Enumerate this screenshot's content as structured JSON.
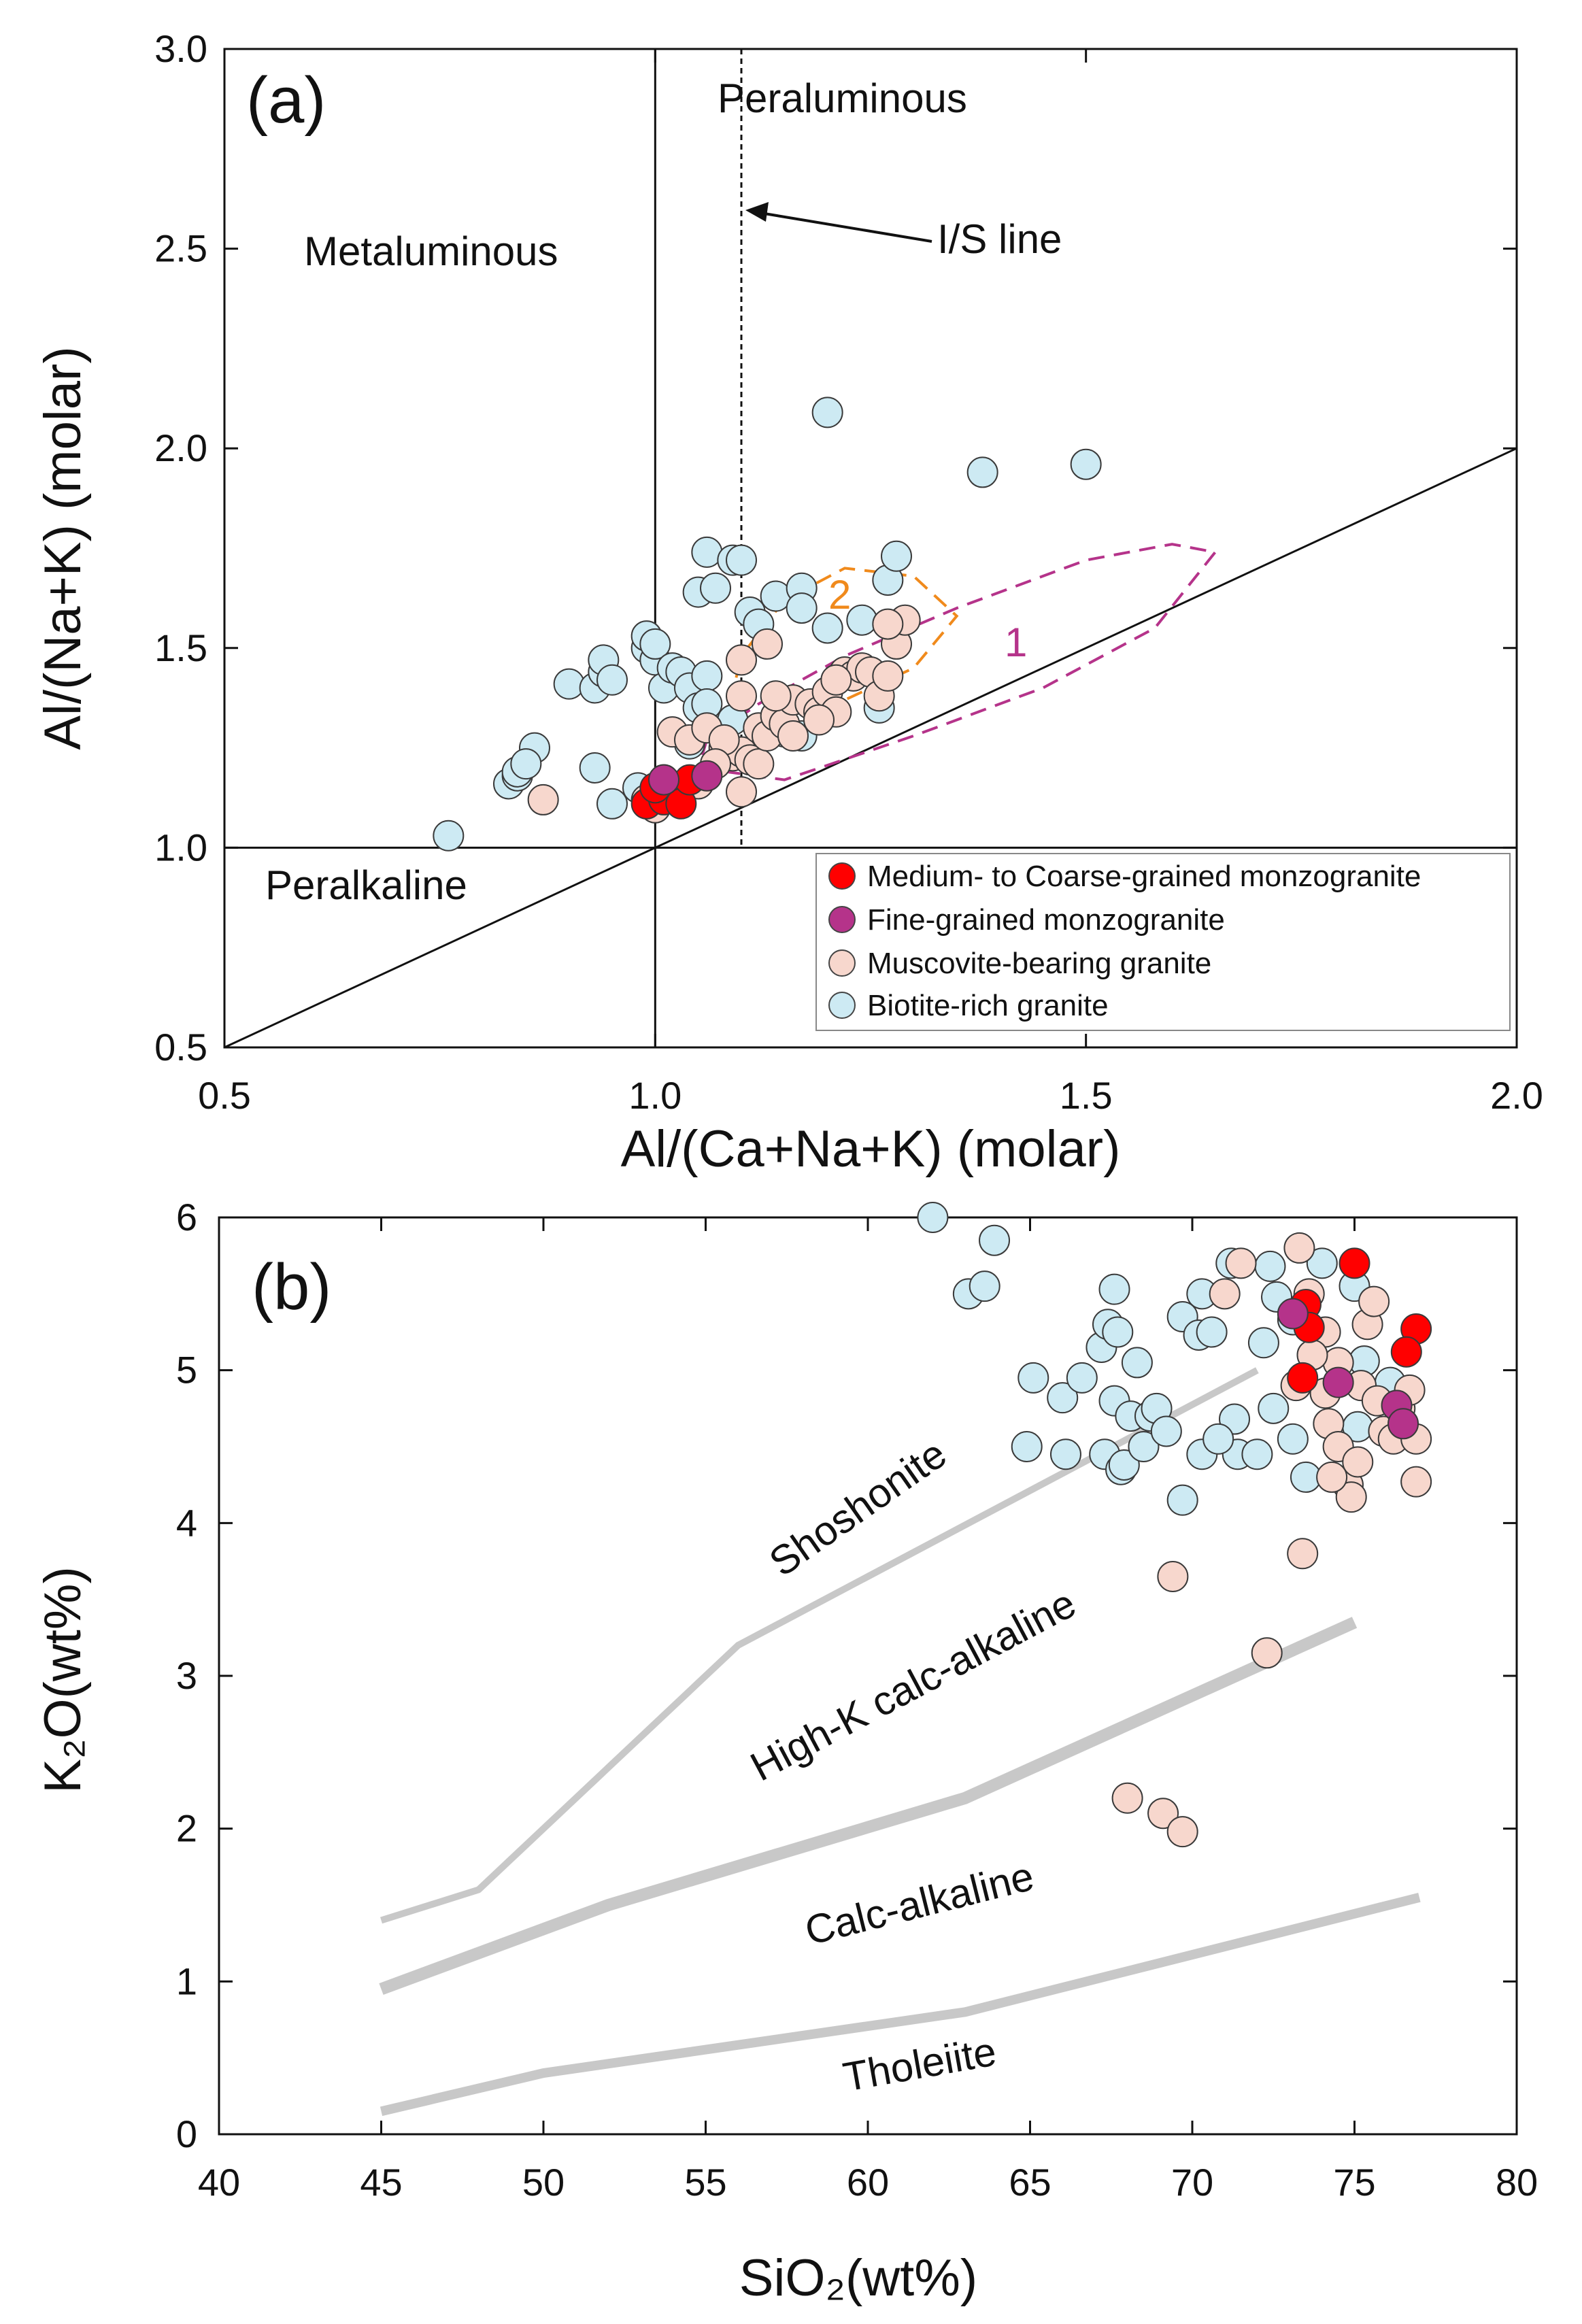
{
  "colors": {
    "monzo_coarse": "#ff0000",
    "monzo_fine": "#b5338a",
    "muscovite": "#f7d7cd",
    "biotite": "#cdeaf3",
    "field1": "#b5338a",
    "field2": "#f08a1c",
    "trend": "#c8c8c8"
  },
  "chart_data": [
    {
      "type": "scatter",
      "panel_label": "(a)",
      "xlabel": "Al/(Ca+Na+K) (molar)",
      "ylabel": "Al/(Na+K) (molar)",
      "xlim": [
        0.5,
        2.0
      ],
      "ylim": [
        0.5,
        3.0
      ],
      "xticks": [
        "0.5",
        "1.0",
        "1.5",
        "2.0"
      ],
      "yticks": [
        "0.5",
        "1.0",
        "1.5",
        "2.0",
        "2.5",
        "3.0"
      ],
      "region_labels": {
        "metaluminous": "Metaluminous",
        "peraluminous": "Peraluminous",
        "peralkaline": "Peralkaline"
      },
      "is_line_label": "I/S line",
      "is_line_x": 1.1,
      "field_labels": {
        "field1": "1",
        "field2": "2"
      },
      "legend": {
        "monzo_coarse": "Medium- to Coarse-grained monzogranite",
        "monzo_fine": "Fine-grained monzogranite",
        "muscovite": "Muscovite-bearing granite",
        "biotite": "Biotite-rich granite"
      },
      "series": [
        {
          "name": "Biotite-rich granite",
          "key": "biotite",
          "points": [
            [
              0.76,
              1.03
            ],
            [
              0.83,
              1.16
            ],
            [
              0.84,
              1.18
            ],
            [
              0.86,
              1.25
            ],
            [
              0.84,
              1.19
            ],
            [
              0.85,
              1.21
            ],
            [
              0.9,
              1.41
            ],
            [
              0.93,
              1.4
            ],
            [
              0.94,
              1.44
            ],
            [
              0.94,
              1.47
            ],
            [
              0.95,
              1.42
            ],
            [
              0.99,
              1.5
            ],
            [
              0.99,
              1.53
            ],
            [
              1.0,
              1.47
            ],
            [
              1.0,
              1.51
            ],
            [
              1.01,
              1.4
            ],
            [
              1.02,
              1.45
            ],
            [
              1.03,
              1.44
            ],
            [
              1.04,
              1.4
            ],
            [
              1.05,
              1.35
            ],
            [
              1.06,
              1.43
            ],
            [
              1.05,
              1.64
            ],
            [
              1.07,
              1.65
            ],
            [
              1.06,
              1.74
            ],
            [
              1.09,
              1.72
            ],
            [
              1.1,
              1.72
            ],
            [
              1.11,
              1.59
            ],
            [
              1.12,
              1.56
            ],
            [
              1.14,
              1.63
            ],
            [
              1.17,
              1.65
            ],
            [
              1.17,
              1.6
            ],
            [
              1.2,
              1.55
            ],
            [
              1.24,
              1.57
            ],
            [
              1.27,
              1.67
            ],
            [
              1.28,
              1.73
            ],
            [
              1.2,
              2.09
            ],
            [
              1.38,
              1.94
            ],
            [
              1.5,
              1.96
            ],
            [
              1.17,
              1.28
            ],
            [
              1.15,
              1.29
            ],
            [
              0.93,
              1.2
            ],
            [
              0.95,
              1.11
            ],
            [
              0.98,
              1.15
            ],
            [
              1.01,
              1.17
            ],
            [
              1.04,
              1.26
            ],
            [
              1.09,
              1.32
            ],
            [
              1.06,
              1.36
            ],
            [
              1.26,
              1.35
            ]
          ]
        },
        {
          "name": "Muscovite-bearing granite",
          "key": "muscovite",
          "points": [
            [
              0.87,
              1.12
            ],
            [
              0.99,
              1.12
            ],
            [
              1.0,
              1.1
            ],
            [
              1.02,
              1.29
            ],
            [
              1.04,
              1.27
            ],
            [
              1.06,
              1.3
            ],
            [
              1.08,
              1.25
            ],
            [
              1.09,
              1.23
            ],
            [
              1.1,
              1.14
            ],
            [
              1.1,
              1.24
            ],
            [
              1.11,
              1.22
            ],
            [
              1.12,
              1.21
            ],
            [
              1.12,
              1.3
            ],
            [
              1.13,
              1.28
            ],
            [
              1.14,
              1.33
            ],
            [
              1.15,
              1.31
            ],
            [
              1.16,
              1.37
            ],
            [
              1.18,
              1.36
            ],
            [
              1.19,
              1.34
            ],
            [
              1.2,
              1.39
            ],
            [
              1.21,
              1.34
            ],
            [
              1.22,
              1.44
            ],
            [
              1.23,
              1.43
            ],
            [
              1.24,
              1.45
            ],
            [
              1.25,
              1.44
            ],
            [
              1.26,
              1.38
            ],
            [
              1.27,
              1.43
            ],
            [
              1.28,
              1.51
            ],
            [
              1.29,
              1.57
            ],
            [
              1.27,
              1.56
            ],
            [
              1.1,
              1.47
            ],
            [
              1.1,
              1.38
            ],
            [
              1.13,
              1.51
            ],
            [
              1.14,
              1.38
            ],
            [
              1.08,
              1.27
            ],
            [
              1.07,
              1.21
            ],
            [
              1.16,
              1.28
            ],
            [
              1.19,
              1.32
            ],
            [
              1.21,
              1.42
            ],
            [
              1.05,
              1.16
            ]
          ]
        },
        {
          "name": "Medium- to Coarse-grained monzogranite",
          "key": "monzo_coarse",
          "points": [
            [
              0.99,
              1.11
            ],
            [
              1.01,
              1.12
            ],
            [
              1.03,
              1.11
            ],
            [
              1.04,
              1.17
            ],
            [
              1.0,
              1.15
            ]
          ]
        },
        {
          "name": "Fine-grained monzogranite",
          "key": "monzo_fine",
          "points": [
            [
              1.01,
              1.17
            ],
            [
              1.06,
              1.18
            ]
          ]
        }
      ]
    },
    {
      "type": "scatter",
      "panel_label": "(b)",
      "xlabel": "SiO₂(wt%)",
      "ylabel": "K₂O(wt%)",
      "xlim": [
        40,
        80
      ],
      "ylim": [
        0,
        6
      ],
      "xticks": [
        "40",
        "45",
        "50",
        "55",
        "60",
        "65",
        "70",
        "75",
        "80"
      ],
      "yticks": [
        "0",
        "1",
        "2",
        "3",
        "4",
        "5",
        "6"
      ],
      "series_labels": {
        "shoshonite": "Shoshonite",
        "highk": "High-K calc-alkaline",
        "calc": "Calc-alkaline",
        "thol": "Tholeiite"
      },
      "boundaries": [
        {
          "name": "shoshonite",
          "points": [
            [
              45,
              1.4
            ],
            [
              48,
              1.6
            ],
            [
              56,
              3.2
            ],
            [
              72,
              5.0
            ]
          ]
        },
        {
          "name": "highk-calc",
          "points": [
            [
              45,
              0.95
            ],
            [
              52,
              1.5
            ],
            [
              63,
              2.2
            ],
            [
              75,
              3.35
            ]
          ]
        },
        {
          "name": "calc-thol",
          "points": [
            [
              45,
              0.15
            ],
            [
              50,
              0.4
            ],
            [
              63,
              0.8
            ],
            [
              77,
              1.55
            ]
          ]
        }
      ],
      "series": [
        {
          "name": "Biotite-rich granite",
          "key": "biotite",
          "points": [
            [
              62,
              6.0
            ],
            [
              63.9,
              5.85
            ],
            [
              63.1,
              5.5
            ],
            [
              63.6,
              5.55
            ],
            [
              65.1,
              4.95
            ],
            [
              64.9,
              4.5
            ],
            [
              66,
              4.82
            ],
            [
              66.1,
              4.45
            ],
            [
              66.6,
              4.95
            ],
            [
              67.2,
              5.15
            ],
            [
              67.4,
              5.3
            ],
            [
              67.6,
              5.53
            ],
            [
              67.7,
              5.25
            ],
            [
              68.3,
              5.05
            ],
            [
              67.3,
              4.45
            ],
            [
              67.6,
              4.8
            ],
            [
              68.1,
              4.7
            ],
            [
              67.8,
              4.35
            ],
            [
              67.9,
              4.38
            ],
            [
              68.5,
              4.5
            ],
            [
              68.7,
              4.7
            ],
            [
              68.9,
              4.75
            ],
            [
              69.2,
              4.6
            ],
            [
              69.7,
              4.15
            ],
            [
              69.7,
              5.35
            ],
            [
              70.2,
              5.23
            ],
            [
              70.3,
              5.5
            ],
            [
              70.6,
              5.25
            ],
            [
              71.2,
              5.7
            ],
            [
              72.4,
              5.68
            ],
            [
              72.2,
              5.18
            ],
            [
              72.6,
              5.48
            ],
            [
              73.1,
              5.33
            ],
            [
              72.5,
              4.75
            ],
            [
              71.3,
              4.68
            ],
            [
              71.4,
              4.45
            ],
            [
              70.3,
              4.45
            ],
            [
              70.8,
              4.55
            ],
            [
              72,
              4.45
            ],
            [
              73.1,
              4.55
            ],
            [
              73.5,
              4.3
            ],
            [
              74,
              5.7
            ],
            [
              75,
              5.55
            ],
            [
              75.3,
              5.06
            ],
            [
              76.1,
              4.92
            ],
            [
              75.1,
              4.63
            ]
          ]
        },
        {
          "name": "Muscovite-bearing granite",
          "key": "muscovite",
          "points": [
            [
              71,
              5.5
            ],
            [
              71.5,
              5.7
            ],
            [
              73.3,
              5.8
            ],
            [
              73.6,
              5.5
            ],
            [
              74.1,
              5.25
            ],
            [
              74.2,
              4.65
            ],
            [
              74.5,
              4.5
            ],
            [
              74.8,
              4.25
            ],
            [
              74.9,
              4.17
            ],
            [
              75.2,
              4.9
            ],
            [
              75.4,
              5.3
            ],
            [
              75.6,
              5.45
            ],
            [
              75.9,
              4.6
            ],
            [
              76.2,
              4.55
            ],
            [
              76.4,
              4.75
            ],
            [
              76.7,
              4.87
            ],
            [
              76.9,
              4.55
            ],
            [
              76.9,
              4.27
            ],
            [
              74.1,
              4.85
            ],
            [
              74.5,
              5.05
            ],
            [
              75.7,
              4.8
            ],
            [
              73.7,
              5.1
            ],
            [
              73.2,
              4.9
            ],
            [
              75.1,
              4.4
            ],
            [
              74.3,
              4.3
            ],
            [
              73.4,
              3.8
            ],
            [
              69.4,
              3.65
            ],
            [
              72.3,
              3.15
            ],
            [
              68,
              2.2
            ],
            [
              69.1,
              2.1
            ],
            [
              69.7,
              1.98
            ]
          ]
        },
        {
          "name": "Medium- to Coarse-grained monzogranite",
          "key": "monzo_coarse",
          "points": [
            [
              73.5,
              5.43
            ],
            [
              73.6,
              5.28
            ],
            [
              73.4,
              4.95
            ],
            [
              75,
              5.7
            ],
            [
              76.9,
              5.27
            ],
            [
              76.6,
              5.12
            ]
          ]
        },
        {
          "name": "Fine-grained monzogranite",
          "key": "monzo_fine",
          "points": [
            [
              73.1,
              5.37
            ],
            [
              74.5,
              4.92
            ],
            [
              76.3,
              4.77
            ],
            [
              76.5,
              4.65
            ]
          ]
        }
      ]
    }
  ]
}
